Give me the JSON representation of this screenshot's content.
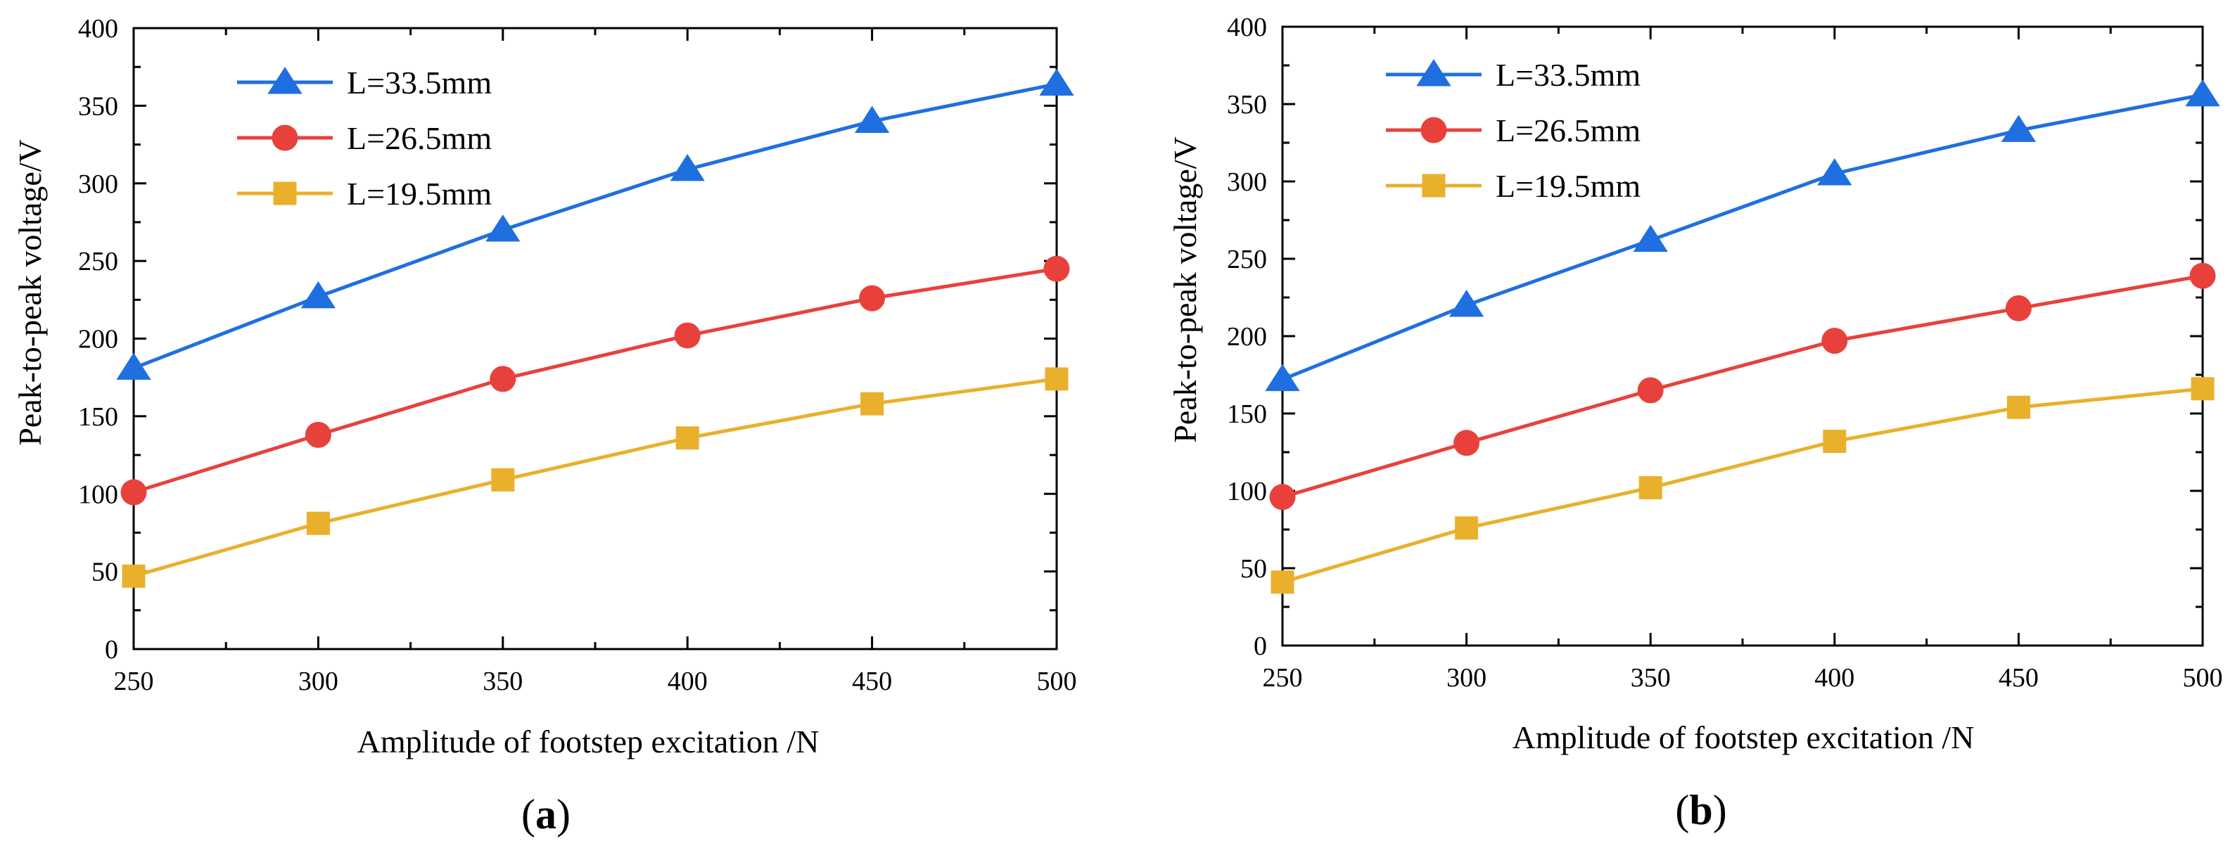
{
  "figure_labels": [
    "(a)",
    "(b)"
  ],
  "chart_data": [
    {
      "type": "line",
      "panel": "(a)",
      "panel_letter": "a",
      "xlabel": "Amplitude of footstep excitation /N",
      "ylabel": "Peak-to-peak voltage/V",
      "x": [
        250,
        300,
        350,
        400,
        450,
        500
      ],
      "xlim": [
        250,
        500
      ],
      "ylim": [
        0,
        400
      ],
      "xticks": [
        250,
        300,
        350,
        400,
        450,
        500
      ],
      "yticks": [
        0,
        50,
        100,
        150,
        200,
        250,
        300,
        350,
        400
      ],
      "grid": false,
      "legend_position": "top-left",
      "series": [
        {
          "name": "L=33.5mm",
          "marker": "triangle",
          "color": "#1f6fe0",
          "values": [
            181,
            227,
            270,
            309,
            340,
            364
          ]
        },
        {
          "name": "L=26.5mm",
          "marker": "circle",
          "color": "#e8413c",
          "values": [
            101,
            138,
            174,
            202,
            226,
            245
          ]
        },
        {
          "name": "L=19.5mm",
          "marker": "square",
          "color": "#e9b02c",
          "values": [
            47,
            81,
            109,
            136,
            158,
            174
          ]
        }
      ]
    },
    {
      "type": "line",
      "panel": "(b)",
      "panel_letter": "b",
      "xlabel": "Amplitude of footstep excitation /N",
      "ylabel": "Peak-to-peak voltage/V",
      "x": [
        250,
        300,
        350,
        400,
        450,
        500
      ],
      "xlim": [
        250,
        500
      ],
      "ylim": [
        0,
        400
      ],
      "xticks": [
        250,
        300,
        350,
        400,
        450,
        500
      ],
      "yticks": [
        0,
        50,
        100,
        150,
        200,
        250,
        300,
        350,
        400
      ],
      "grid": false,
      "legend_position": "top-left",
      "series": [
        {
          "name": "L=33.5mm",
          "marker": "triangle",
          "color": "#1f6fe0",
          "values": [
            172,
            220,
            262,
            305,
            333,
            356
          ]
        },
        {
          "name": "L=26.5mm",
          "marker": "circle",
          "color": "#e8413c",
          "values": [
            96,
            131,
            165,
            197,
            218,
            239
          ]
        },
        {
          "name": "L=19.5mm",
          "marker": "square",
          "color": "#e9b02c",
          "values": [
            41,
            76,
            102,
            132,
            154,
            166
          ]
        }
      ]
    }
  ]
}
